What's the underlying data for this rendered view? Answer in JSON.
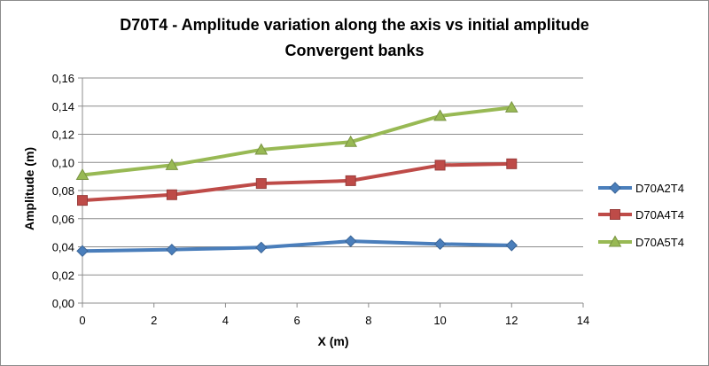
{
  "chart_data": {
    "type": "line",
    "title": "D70T4 - Amplitude variation along the axis vs initial amplitude",
    "subtitle": "Convergent banks",
    "xlabel": "X (m)",
    "ylabel": "Amplitude (m)",
    "xlim": [
      0,
      14
    ],
    "ylim": [
      0,
      0.16
    ],
    "x_ticks": [
      "0",
      "2",
      "4",
      "6",
      "8",
      "10",
      "12",
      "14"
    ],
    "y_ticks": [
      "0,00",
      "0,02",
      "0,04",
      "0,06",
      "0,08",
      "0,10",
      "0,12",
      "0,14",
      "0,16"
    ],
    "grid": true,
    "legend_position": "right",
    "x": [
      0,
      2.5,
      5,
      7.5,
      10,
      12
    ],
    "series": [
      {
        "name": "D70A2T4",
        "color": "#4a7ebb",
        "marker": "diamond",
        "values": [
          0.037,
          0.038,
          0.0395,
          0.044,
          0.042,
          0.041
        ]
      },
      {
        "name": "D70A4T4",
        "color": "#be4b48",
        "marker": "square",
        "values": [
          0.073,
          0.077,
          0.085,
          0.087,
          0.098,
          0.099
        ]
      },
      {
        "name": "D70A5T4",
        "color": "#98b954",
        "marker": "triangle",
        "values": [
          0.091,
          0.098,
          0.109,
          0.1145,
          0.133,
          0.139
        ]
      }
    ]
  }
}
